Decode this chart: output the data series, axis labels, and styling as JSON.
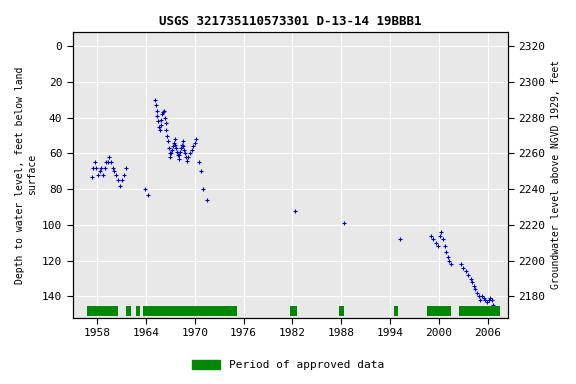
{
  "title": "USGS 321735110573301 D-13-14 19BBB1",
  "ylabel_left": "Depth to water level, feet below land\nsurface",
  "ylabel_right": "Groundwater level above NGVD 1929, feet",
  "xlim": [
    1955.0,
    2008.5
  ],
  "ylim_left": [
    152,
    -8
  ],
  "ylim_right": [
    2168,
    2328
  ],
  "xticks": [
    1958,
    1964,
    1970,
    1976,
    1982,
    1988,
    1994,
    2000,
    2006
  ],
  "yticks_left": [
    0,
    20,
    40,
    60,
    80,
    100,
    120,
    140
  ],
  "yticks_right": [
    2180,
    2200,
    2220,
    2240,
    2260,
    2280,
    2300,
    2320
  ],
  "background_color": "#ffffff",
  "plot_bg_color": "#e8e8e8",
  "grid_color": "#ffffff",
  "data_color": "#0000cc",
  "approved_color": "#008800",
  "legend_label": "Period of approved data",
  "approved_periods": [
    [
      1956.8,
      1960.6
    ],
    [
      1961.5,
      1962.1
    ],
    [
      1962.8,
      1963.3
    ],
    [
      1963.6,
      1975.2
    ],
    [
      1981.7,
      1982.5
    ],
    [
      1987.7,
      1988.3
    ],
    [
      1994.5,
      1995.0
    ],
    [
      1998.5,
      2001.5
    ],
    [
      2002.5,
      2007.5
    ]
  ],
  "scatter_data": {
    "years": [
      1957.3,
      1957.5,
      1957.7,
      1957.9,
      1958.1,
      1958.3,
      1958.5,
      1958.7,
      1958.9,
      1959.1,
      1959.3,
      1959.5,
      1959.7,
      1959.9,
      1960.1,
      1960.3,
      1960.5,
      1960.8,
      1961.0,
      1961.3,
      1961.5,
      1963.9,
      1964.2,
      1965.1,
      1965.2,
      1965.3,
      1965.4,
      1965.5,
      1965.6,
      1965.7,
      1965.8,
      1965.9,
      1966.0,
      1966.1,
      1966.2,
      1966.3,
      1966.4,
      1966.5,
      1966.6,
      1966.7,
      1966.8,
      1966.9,
      1967.0,
      1967.1,
      1967.2,
      1967.3,
      1967.4,
      1967.5,
      1967.6,
      1967.7,
      1967.8,
      1967.9,
      1968.0,
      1968.1,
      1968.2,
      1968.3,
      1968.4,
      1968.5,
      1968.6,
      1968.7,
      1968.8,
      1968.9,
      1969.0,
      1969.2,
      1969.4,
      1969.6,
      1969.8,
      1970.0,
      1970.2,
      1970.5,
      1970.8,
      1971.0,
      1971.5,
      1982.3,
      1988.3,
      1995.2,
      1999.0,
      1999.3,
      1999.6,
      1999.9,
      2000.1,
      2000.3,
      2000.5,
      2000.7,
      2000.9,
      2001.1,
      2001.3,
      2001.5,
      2002.7,
      2003.0,
      2003.3,
      2003.6,
      2003.9,
      2004.1,
      2004.3,
      2004.5,
      2004.7,
      2004.9,
      2005.1,
      2005.3,
      2005.5,
      2005.7,
      2005.9,
      2006.1,
      2006.3,
      2006.5,
      2006.7
    ],
    "depths": [
      73,
      68,
      65,
      68,
      72,
      70,
      68,
      72,
      68,
      65,
      65,
      62,
      65,
      68,
      70,
      72,
      75,
      78,
      75,
      72,
      68,
      80,
      83,
      30,
      33,
      36,
      39,
      42,
      45,
      47,
      44,
      41,
      38,
      37,
      36,
      40,
      43,
      47,
      50,
      53,
      57,
      60,
      62,
      60,
      58,
      56,
      54,
      52,
      55,
      57,
      59,
      61,
      63,
      61,
      59,
      57,
      55,
      53,
      56,
      58,
      60,
      62,
      64,
      62,
      60,
      58,
      56,
      54,
      52,
      65,
      70,
      80,
      86,
      92,
      99,
      108,
      106,
      108,
      110,
      112,
      106,
      104,
      108,
      112,
      115,
      118,
      120,
      122,
      122,
      124,
      126,
      128,
      130,
      132,
      134,
      136,
      138,
      140,
      142,
      140,
      141,
      142,
      143,
      142,
      141,
      142,
      145
    ]
  }
}
